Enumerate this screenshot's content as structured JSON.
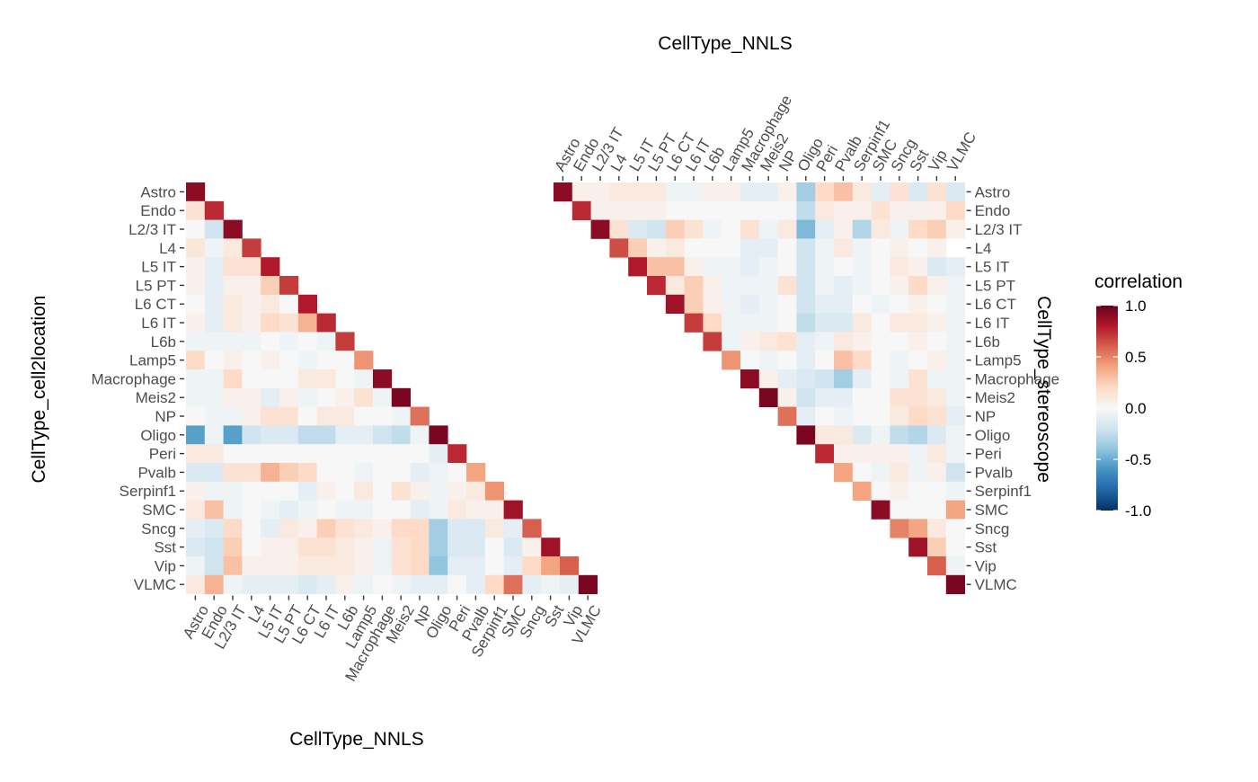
{
  "chart_data": [
    {
      "type": "heatmap",
      "panel": "left",
      "shape": "lower-triangle",
      "categories": [
        "Astro",
        "Endo",
        "L2/3 IT",
        "L4",
        "L5 IT",
        "L5 PT",
        "L6 CT",
        "L6 IT",
        "L6b",
        "Lamp5",
        "Macrophage",
        "Meis2",
        "NP",
        "Oligo",
        "Peri",
        "Pvalb",
        "Serpinf1",
        "SMC",
        "Sncg",
        "Sst",
        "Vip",
        "VLMC"
      ],
      "xlabel": "CellType_NNLS",
      "ylabel": "CellType_cell2location",
      "values": [
        [
          0.9
        ],
        [
          0.15,
          0.75
        ],
        [
          0.0,
          -0.2,
          0.9
        ],
        [
          0.12,
          -0.05,
          0.1,
          0.7
        ],
        [
          0.05,
          -0.1,
          0.15,
          0.15,
          0.8
        ],
        [
          0.05,
          -0.1,
          0.05,
          0.05,
          0.25,
          0.7
        ],
        [
          0.0,
          -0.1,
          0.1,
          0.05,
          0.1,
          0.0,
          0.8
        ],
        [
          0.05,
          -0.1,
          0.1,
          0.05,
          0.2,
          0.15,
          0.35,
          0.75
        ],
        [
          -0.05,
          -0.05,
          -0.05,
          -0.05,
          0.0,
          -0.05,
          0.0,
          -0.05,
          0.7
        ],
        [
          0.2,
          0.0,
          0.05,
          0.0,
          0.05,
          0.0,
          -0.05,
          0.0,
          0.0,
          0.45
        ],
        [
          -0.05,
          -0.05,
          0.2,
          0.0,
          0.0,
          0.0,
          0.1,
          0.1,
          0.0,
          -0.05,
          0.9
        ],
        [
          -0.05,
          -0.05,
          0.05,
          0.05,
          -0.1,
          0.05,
          -0.05,
          0.0,
          0.05,
          0.15,
          -0.05,
          0.95
        ],
        [
          0.0,
          -0.05,
          -0.05,
          0.05,
          0.15,
          0.15,
          0.0,
          0.1,
          0.1,
          0.0,
          0.0,
          -0.05,
          0.55
        ],
        [
          -0.55,
          -0.05,
          -0.55,
          -0.2,
          -0.15,
          -0.15,
          -0.25,
          -0.25,
          -0.1,
          -0.1,
          -0.2,
          -0.25,
          -0.05,
          0.95
        ],
        [
          0.1,
          0.1,
          0.0,
          0.0,
          0.0,
          0.0,
          0.0,
          0.0,
          0.0,
          0.0,
          0.0,
          0.0,
          0.0,
          -0.1,
          0.75
        ],
        [
          -0.15,
          -0.15,
          0.15,
          0.15,
          0.35,
          0.25,
          0.2,
          0.0,
          0.0,
          -0.05,
          0.0,
          0.0,
          -0.1,
          -0.05,
          0.0,
          0.4
        ],
        [
          0.05,
          -0.05,
          -0.05,
          0.0,
          0.0,
          0.0,
          -0.1,
          0.05,
          0.0,
          0.1,
          0.0,
          0.15,
          0.05,
          -0.05,
          0.05,
          0.1,
          0.45
        ],
        [
          0.1,
          0.3,
          -0.05,
          0.0,
          -0.05,
          -0.1,
          -0.05,
          0.0,
          -0.05,
          -0.05,
          0.0,
          0.0,
          -0.1,
          -0.05,
          0.1,
          0.05,
          0.05,
          0.85
        ],
        [
          -0.1,
          -0.15,
          0.2,
          0.0,
          -0.1,
          0.1,
          0.05,
          0.25,
          0.15,
          0.1,
          0.05,
          0.2,
          0.2,
          -0.35,
          -0.15,
          -0.15,
          0.1,
          -0.1,
          0.6
        ],
        [
          -0.15,
          -0.2,
          0.25,
          0.0,
          0.05,
          0.05,
          0.15,
          0.15,
          0.1,
          0.05,
          -0.05,
          0.15,
          0.2,
          -0.35,
          -0.15,
          -0.15,
          0.0,
          -0.15,
          0.05,
          0.85
        ],
        [
          -0.05,
          -0.2,
          0.3,
          0.05,
          0.05,
          0.05,
          0.1,
          0.1,
          0.1,
          0.05,
          -0.05,
          0.15,
          0.2,
          -0.4,
          -0.1,
          -0.1,
          0.0,
          -0.1,
          0.2,
          0.4,
          0.6
        ],
        [
          0.1,
          0.35,
          -0.05,
          -0.1,
          -0.1,
          -0.1,
          -0.15,
          -0.1,
          0.05,
          -0.05,
          0.0,
          -0.05,
          -0.1,
          -0.1,
          0.0,
          -0.1,
          0.2,
          0.55,
          -0.1,
          -0.05,
          -0.1,
          0.95
        ]
      ]
    },
    {
      "type": "heatmap",
      "panel": "right",
      "shape": "upper-triangle",
      "categories": [
        "Astro",
        "Endo",
        "L2/3 IT",
        "L4",
        "L5 IT",
        "L5 PT",
        "L6 CT",
        "L6 IT",
        "L6b",
        "Lamp5",
        "Macrophage",
        "Meis2",
        "NP",
        "Oligo",
        "Peri",
        "Pvalb",
        "Serpinf1",
        "SMC",
        "Sncg",
        "Sst",
        "Vip",
        "VLMC"
      ],
      "xlabel": "CellType_NNLS",
      "ylabel": "CellType_stereoscope",
      "values": [
        [
          0.9,
          0.05,
          0.05,
          0.1,
          0.1,
          0.1,
          -0.05,
          -0.05,
          0.05,
          0.05,
          -0.1,
          -0.1,
          0.05,
          -0.35,
          0.2,
          0.3,
          0.1,
          -0.1,
          0.15,
          -0.15,
          0.15,
          -0.15
        ],
        [
          0.75,
          0.05,
          0.05,
          0.05,
          0.05,
          0.0,
          0.0,
          0.0,
          0.0,
          0.0,
          0.0,
          0.0,
          -0.25,
          0.1,
          0.05,
          0.05,
          0.15,
          0.05,
          0.05,
          0.05,
          0.2
        ],
        [
          0.9,
          0.15,
          -0.15,
          -0.2,
          0.25,
          0.15,
          -0.05,
          0.0,
          0.15,
          -0.05,
          0.1,
          -0.45,
          -0.1,
          0.05,
          -0.3,
          0.1,
          -0.05,
          0.2,
          0.25,
          0.05
        ],
        [
          0.65,
          0.25,
          0.05,
          0.1,
          0.0,
          0.0,
          0.0,
          -0.1,
          -0.1,
          0.0,
          -0.2,
          -0.05,
          0.1,
          -0.05,
          0.0,
          0.05,
          0.0,
          0.05
        ],
        [
          0.8,
          0.3,
          0.3,
          0.05,
          -0.05,
          -0.05,
          -0.1,
          -0.05,
          0.0,
          -0.2,
          -0.05,
          0.0,
          -0.05,
          0.0,
          0.1,
          0.05,
          -0.15,
          -0.1
        ],
        [
          0.75,
          0.1,
          0.25,
          0.05,
          -0.05,
          -0.05,
          -0.05,
          0.15,
          -0.2,
          -0.05,
          -0.1,
          -0.05,
          0.0,
          0.05,
          0.2,
          0.05,
          -0.05
        ],
        [
          0.85,
          0.25,
          0.05,
          -0.05,
          -0.1,
          -0.05,
          0.0,
          -0.2,
          -0.1,
          -0.1,
          0.0,
          -0.05,
          0.0,
          0.05,
          0.0,
          -0.05
        ],
        [
          0.7,
          0.2,
          -0.05,
          -0.05,
          -0.05,
          0.0,
          -0.25,
          -0.15,
          -0.15,
          0.1,
          0.0,
          0.1,
          0.1,
          0.05,
          -0.05
        ],
        [
          0.7,
          -0.05,
          0.05,
          0.1,
          0.15,
          -0.1,
          -0.05,
          0.1,
          0.05,
          0.0,
          0.0,
          0.05,
          0.0,
          -0.05
        ],
        [
          0.45,
          0.0,
          -0.05,
          0.0,
          -0.1,
          0.0,
          0.3,
          0.2,
          0.0,
          -0.05,
          0.0,
          0.05,
          -0.05
        ],
        [
          0.9,
          0.05,
          -0.1,
          -0.15,
          -0.2,
          -0.35,
          -0.1,
          0.0,
          -0.05,
          0.15,
          -0.05,
          -0.05
        ],
        [
          0.95,
          0.05,
          -0.2,
          -0.1,
          -0.1,
          0.0,
          0.0,
          0.15,
          0.15,
          0.1,
          -0.05
        ],
        [
          0.55,
          -0.1,
          0.0,
          -0.05,
          0.0,
          0.0,
          0.1,
          0.2,
          0.15,
          -0.1
        ],
        [
          0.95,
          0.1,
          0.1,
          -0.15,
          -0.05,
          -0.25,
          -0.3,
          -0.15,
          -0.05
        ],
        [
          0.75,
          0.05,
          0.05,
          0.05,
          0.05,
          -0.05,
          0.1,
          -0.05
        ],
        [
          0.4,
          0.0,
          -0.05,
          0.1,
          -0.05,
          0.05,
          -0.2
        ],
        [
          0.4,
          0.0,
          0.05,
          0.0,
          0.0,
          -0.05
        ],
        [
          0.9,
          0.0,
          0.0,
          0.0,
          0.4
        ],
        [
          0.5,
          0.4,
          0.1,
          0.0
        ],
        [
          0.85,
          0.25,
          0.0
        ],
        [
          0.6,
          -0.05
        ],
        [
          0.95
        ]
      ]
    }
  ],
  "legend": {
    "title": "correlation",
    "ticks": [
      "1.0",
      "0.5",
      "0.0",
      "-0.5",
      "-1.0"
    ],
    "tick_values": [
      1.0,
      0.5,
      0.0,
      -0.5,
      -1.0
    ],
    "range": [
      -1.0,
      1.0
    ],
    "colors": [
      "#053061",
      "#2166ac",
      "#4393c3",
      "#92c5de",
      "#d1e5f0",
      "#f7f7f7",
      "#fddbc7",
      "#f4a582",
      "#d6604d",
      "#b2182b",
      "#67001f"
    ]
  }
}
